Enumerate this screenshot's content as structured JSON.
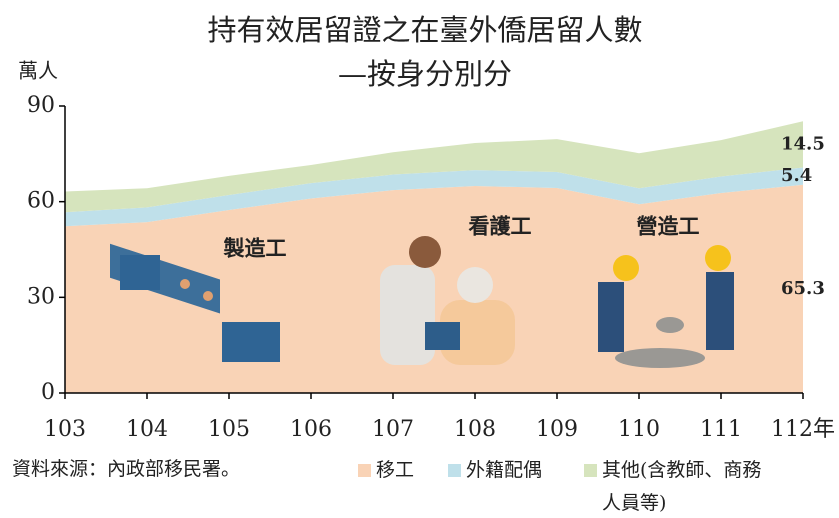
{
  "chart_data": {
    "type": "stacked_area",
    "title": "持有效居留證之在臺外僑居留人數",
    "subtitle": "—按身分別分",
    "y_label": "萬人",
    "source": "資料來源：內政部移民署。",
    "categories": [
      "103",
      "104",
      "105",
      "106",
      "107",
      "108",
      "109",
      "110",
      "111",
      "112年"
    ],
    "series": [
      {
        "name": "移工",
        "color": "#f9d3b6",
        "values": [
          52.3,
          53.6,
          57.4,
          61.0,
          63.6,
          64.9,
          64.3,
          59.2,
          62.7,
          65.3
        ]
      },
      {
        "name": "外籍配偶",
        "color": "#bfe0ea",
        "values": [
          4.4,
          4.6,
          4.7,
          4.8,
          4.9,
          5.0,
          5.0,
          5.0,
          5.2,
          5.4
        ]
      },
      {
        "name": "其他(含教師、商務人員等)",
        "color": "#d6e4bd",
        "values": [
          6.5,
          6.0,
          6.0,
          5.7,
          7.0,
          8.5,
          10.3,
          11.0,
          11.4,
          14.5
        ]
      }
    ],
    "annotations": [
      "製造工",
      "看護工",
      "營造工"
    ],
    "ylim": [
      0,
      90
    ],
    "yticks": [
      0,
      30,
      60,
      90
    ]
  }
}
